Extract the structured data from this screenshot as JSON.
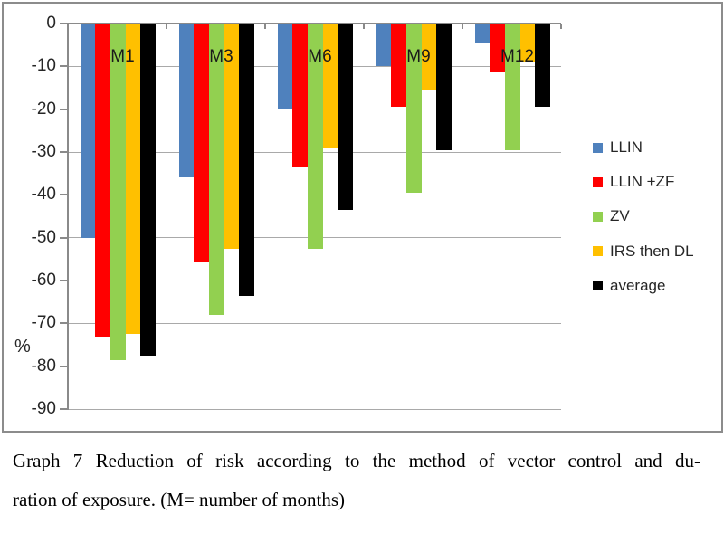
{
  "chart_data": {
    "type": "bar",
    "title": "",
    "xlabel": "",
    "ylabel": "%",
    "ylim": [
      -90,
      0
    ],
    "grid": true,
    "legend_position": "right",
    "categories": [
      "M1",
      "M3",
      "M6",
      "M9",
      "M12"
    ],
    "y_ticks": [
      "0",
      "-10",
      "-20",
      "-30",
      "-40",
      "-50",
      "-60",
      "-70",
      "-80",
      "-90"
    ],
    "series": [
      {
        "name": "LLIN",
        "color": "#4F81BD",
        "values": [
          -50,
          -36,
          -20,
          -10,
          -4.5
        ]
      },
      {
        "name": "LLIN +ZF",
        "color": "#FF0000",
        "values": [
          -73,
          -55.5,
          -33.5,
          -19.5,
          -11.5
        ]
      },
      {
        "name": "ZV",
        "color": "#92D050",
        "values": [
          -78.5,
          -68,
          -52.5,
          -39.5,
          -29.5
        ]
      },
      {
        "name": "IRS then DL",
        "color": "#FFC000",
        "values": [
          -72.5,
          -52.5,
          -29,
          -15.5,
          -9
        ]
      },
      {
        "name": "average",
        "color": "#000000",
        "values": [
          -77.5,
          -63.5,
          -43.5,
          -29.5,
          -19.5
        ]
      }
    ]
  },
  "caption": {
    "line1": "Graph 7 Reduction of risk according to the method of vector control and du-",
    "line2": "ration of exposure. (M= number of months)"
  }
}
